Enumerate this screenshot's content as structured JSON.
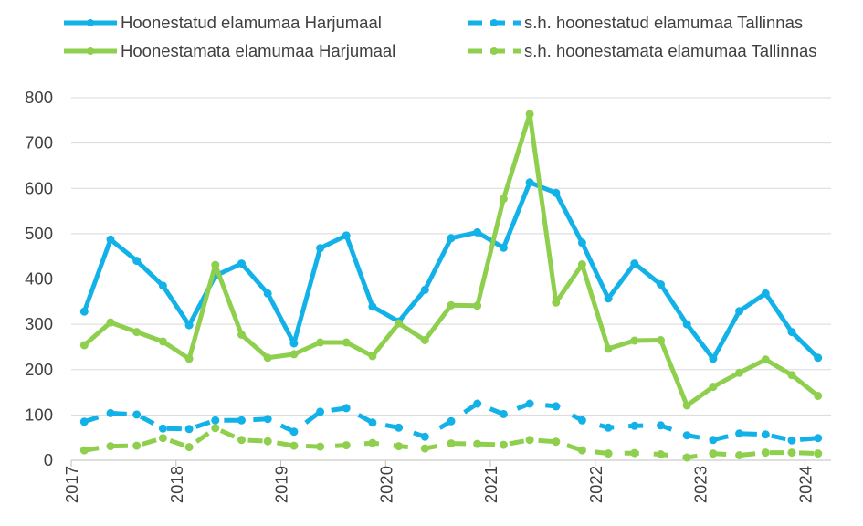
{
  "chart_data": {
    "type": "line",
    "title": "",
    "xlabel": "",
    "ylabel": "",
    "ylim": [
      0,
      800
    ],
    "y_ticks": [
      "0",
      "100",
      "200",
      "300",
      "400",
      "500",
      "600",
      "700",
      "800"
    ],
    "year_labels": [
      "2017",
      "2018",
      "2019",
      "2020",
      "2021",
      "2022",
      "2023",
      "2024"
    ],
    "grid": "horizontal",
    "legend_position": "top",
    "colors": {
      "blue": "#12B2E8",
      "green": "#8ECF4D",
      "grid": "#D9D9D9",
      "axis": "#BFBFBF",
      "text": "#404040"
    },
    "x": [
      "2017 Q1",
      "2017 Q2",
      "2017 Q3",
      "2017 Q4",
      "2018 Q1",
      "2018 Q2",
      "2018 Q3",
      "2018 Q4",
      "2019 Q1",
      "2019 Q2",
      "2019 Q3",
      "2019 Q4",
      "2020 Q1",
      "2020 Q2",
      "2020 Q3",
      "2020 Q4",
      "2021 Q1",
      "2021 Q2",
      "2021 Q3",
      "2021 Q4",
      "2022 Q1",
      "2022 Q2",
      "2022 Q3",
      "2022 Q4",
      "2023 Q1",
      "2023 Q2",
      "2023 Q3",
      "2023 Q4",
      "2024 Q1"
    ],
    "series": [
      {
        "name": "Hoonestatud elamumaa Harjumaal",
        "color": "#12B2E8",
        "style": "solid",
        "values": [
          328,
          487,
          440,
          385,
          298,
          407,
          434,
          368,
          258,
          468,
          496,
          339,
          306,
          376,
          490,
          503,
          469,
          613,
          590,
          480,
          357,
          434,
          388,
          300,
          224,
          329,
          368,
          283,
          226
        ]
      },
      {
        "name": "s.h. hoonestatud elamumaa Tallinnas",
        "color": "#12B2E8",
        "style": "dashed",
        "values": [
          85,
          104,
          101,
          70,
          69,
          88,
          88,
          91,
          63,
          107,
          115,
          83,
          72,
          52,
          86,
          125,
          102,
          125,
          119,
          88,
          72,
          76,
          77,
          55,
          45,
          59,
          57,
          44,
          49
        ]
      },
      {
        "name": "Hoonestamata elamumaa Harjumaal",
        "color": "#8ECF4D",
        "style": "solid",
        "values": [
          254,
          304,
          283,
          262,
          224,
          431,
          277,
          226,
          234,
          260,
          260,
          230,
          302,
          265,
          342,
          341,
          577,
          764,
          348,
          432,
          246,
          264,
          265,
          121,
          162,
          193,
          222,
          188,
          142
        ]
      },
      {
        "name": "s.h. hoonestamata elamumaa Tallinnas",
        "color": "#8ECF4D",
        "style": "dashed",
        "values": [
          22,
          31,
          32,
          49,
          29,
          71,
          45,
          42,
          32,
          30,
          33,
          38,
          31,
          26,
          37,
          36,
          34,
          45,
          41,
          22,
          15,
          16,
          13,
          6,
          15,
          11,
          17,
          17,
          15
        ]
      }
    ]
  }
}
